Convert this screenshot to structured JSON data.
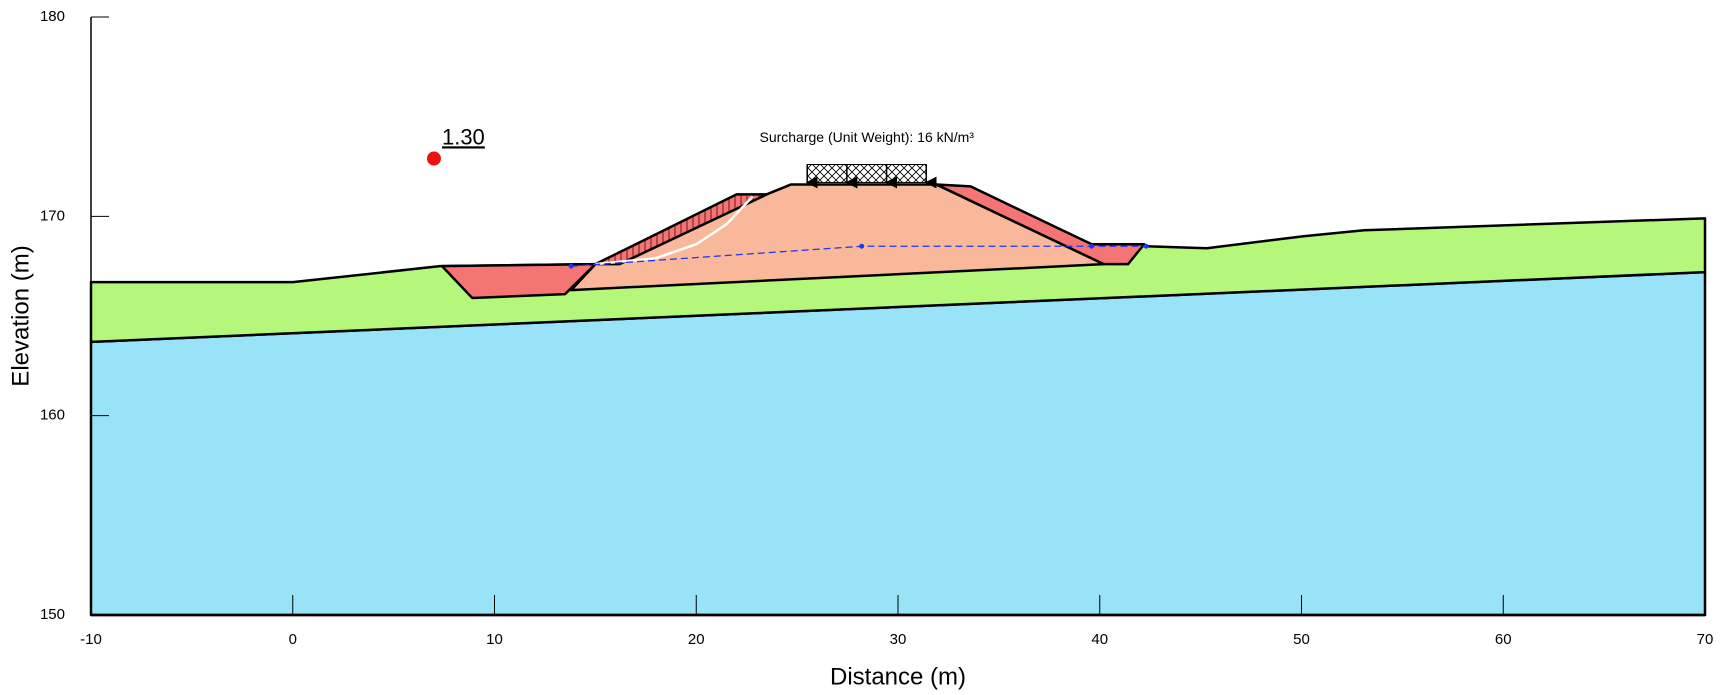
{
  "chart_data": {
    "type": "section",
    "xlabel": "Distance (m)",
    "ylabel": "Elevation (m)",
    "xlim": [
      -10,
      70
    ],
    "ylim": [
      150,
      180
    ],
    "xticks": [
      -10,
      0,
      10,
      20,
      30,
      40,
      50,
      60,
      70
    ],
    "yticks": [
      150,
      160,
      170,
      180
    ],
    "regions": [
      {
        "color": "#99e3f9",
        "x": [
          -10,
          70,
          70,
          -10
        ],
        "y": [
          163.7,
          167.2,
          150,
          150
        ]
      },
      {
        "color": "#b5f77a",
        "x": [
          -10,
          0,
          7.3,
          15,
          40,
          42.3,
          45.3,
          50.1,
          53.1,
          70,
          70,
          -10
        ],
        "y": [
          166.7,
          166.7,
          167.5,
          167.6,
          168.6,
          168.5,
          168.4,
          169.0,
          169.3,
          169.9,
          167.2,
          163.7
        ]
      },
      {
        "color": "#f9b89a",
        "x": [
          15,
          24.7,
          31.9,
          40.2,
          13.8
        ],
        "y": [
          167.6,
          171.6,
          171.6,
          167.6,
          166.3
        ]
      },
      {
        "color": "#f57575",
        "x": [
          7.4,
          15,
          13.5,
          8.9
        ],
        "y": [
          167.5,
          167.6,
          166.1,
          165.9
        ]
      },
      {
        "color": "#f57575",
        "hatched": true,
        "x": [
          15,
          22,
          23.5,
          16.2
        ],
        "y": [
          167.6,
          171.1,
          171.1,
          167.6
        ]
      },
      {
        "color": "#f57575",
        "x": [
          31.9,
          33.6,
          39.6,
          42.2,
          41.4,
          40.2
        ],
        "y": [
          171.6,
          171.5,
          168.6,
          168.6,
          167.6,
          167.6
        ]
      }
    ],
    "piezometric_line": {
      "color": "#2233ee",
      "x": [
        13.8,
        28.2,
        39.6,
        42.3
      ],
      "y": [
        167.5,
        168.5,
        168.5,
        168.5
      ]
    },
    "slip_surface": {
      "color": "#ffffff",
      "x": [
        15,
        18,
        20,
        21.5,
        22.8
      ],
      "y": [
        167.6,
        167.9,
        168.6,
        169.6,
        171.0
      ]
    },
    "surcharge": {
      "label": "Surcharge (Unit Weight): 16 kN/m³",
      "x": [
        25.5,
        31.4
      ],
      "y": [
        171.7,
        172.6
      ]
    },
    "factor_of_safety": {
      "label": "1.30",
      "x": 7,
      "y": 172.9,
      "color": "#ee1111"
    }
  }
}
